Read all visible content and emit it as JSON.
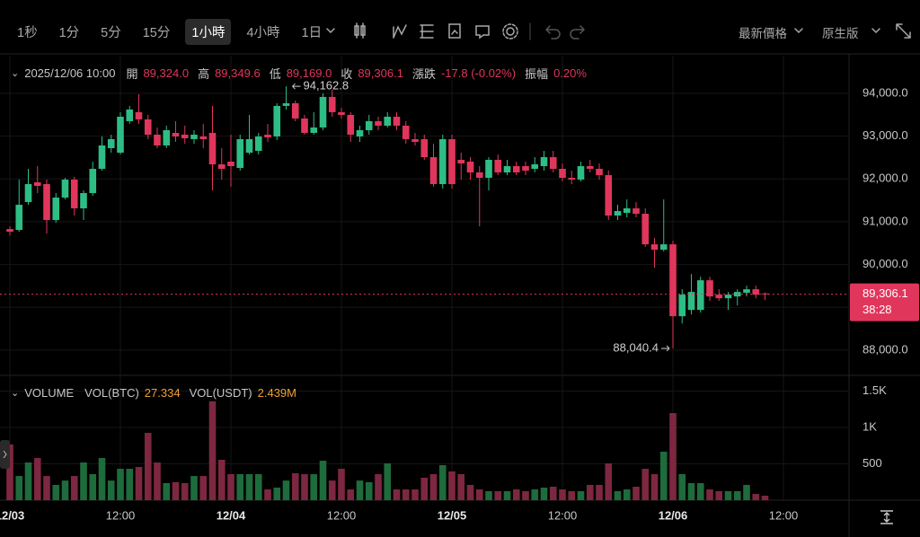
{
  "toolbar": {
    "intervals": [
      "1秒",
      "1分",
      "5分",
      "15分",
      "1小時",
      "4小時",
      "1日"
    ],
    "active_interval": "1小時",
    "price_type": "最新價格",
    "version": "原生版"
  },
  "chart_data": {
    "type": "candlestick",
    "info": {
      "time": "2025/12/06 10:00",
      "fields": [
        {
          "name": "開",
          "value": "89,324.0"
        },
        {
          "name": "高",
          "value": "89,349.6"
        },
        {
          "name": "低",
          "value": "89,169.0"
        },
        {
          "name": "收",
          "value": "89,306.1"
        },
        {
          "name": "漲跌",
          "value": "-17.8 (-0.02%)"
        },
        {
          "name": "振幅",
          "value": "0.20%"
        }
      ]
    },
    "up_color": "#2ebd85",
    "down_color": "#e0365c",
    "open": [
      90829,
      90808,
      91459,
      91921,
      91879,
      91039,
      91564,
      91984,
      91312,
      91669,
      92236,
      92719,
      92614,
      93349,
      93559,
      93391,
      93034,
      92782,
      93076,
      93034,
      92929,
      92992,
      93076,
      92341,
      92404,
      92257,
      92614,
      92656,
      93034,
      92992,
      93706,
      93769,
      93412,
      93076,
      93202,
      93916,
      93559,
      93496,
      92992,
      93139,
      93349,
      93244,
      93454,
      93244,
      92929,
      92929,
      92509,
      91879,
      92929,
      92446,
      92404,
      92152,
      92026,
      92446,
      92152,
      92299,
      92299,
      92236,
      92299,
      92509,
      92236,
      92026,
      91984,
      92299,
      92236,
      92089,
      91144,
      91207,
      91312,
      91186,
      90472,
      90346,
      90472,
      88792,
      88939,
      88939,
      89632,
      89296,
      89212,
      89254,
      89338,
      89422,
      89324.0
    ],
    "high": [
      90892,
      91984,
      92236,
      92299,
      91984,
      91669,
      92026,
      92047,
      91732,
      92404,
      92992,
      93034,
      93559,
      93706,
      93979,
      93496,
      93202,
      93244,
      93349,
      93244,
      93139,
      93286,
      93706,
      92719,
      93034,
      93034,
      93496,
      93076,
      93286,
      93769,
      94162.8,
      93832,
      93496,
      93559,
      94000,
      94084,
      93664,
      93559,
      93244,
      93496,
      93454,
      93559,
      93559,
      93349,
      93076,
      93034,
      92824,
      93034,
      93034,
      92614,
      92509,
      92299,
      92509,
      92572,
      92446,
      92404,
      92404,
      92509,
      92656,
      92656,
      92362,
      92194,
      92404,
      92446,
      92362,
      92194,
      91396,
      91522,
      91459,
      91312,
      90619,
      91522,
      90556,
      89422,
      89779,
      89716,
      89716,
      89422,
      89359,
      89422,
      89506,
      89506,
      89349.6
    ],
    "low": [
      90682,
      90766,
      91396,
      91669,
      90724,
      90976,
      91522,
      91144,
      91039,
      91606,
      92194,
      92614,
      92572,
      93286,
      93286,
      92929,
      92719,
      92719,
      92866,
      92824,
      92824,
      92719,
      91732,
      91984,
      91816,
      92194,
      92572,
      92572,
      92866,
      92908,
      93622,
      93349,
      93034,
      93034,
      93139,
      93454,
      93412,
      92866,
      92866,
      93034,
      93139,
      93202,
      93139,
      92824,
      92782,
      92446,
      91816,
      91774,
      91774,
      91984,
      91984,
      90892,
      91732,
      92089,
      92089,
      92089,
      92089,
      92152,
      92194,
      92152,
      91942,
      91879,
      91942,
      92152,
      91984,
      91039,
      91039,
      91102,
      91102,
      90409,
      89926,
      90304,
      88040.4,
      88624,
      88834,
      88876,
      89149,
      89149,
      88939,
      89044,
      89254,
      89212,
      89169.0
    ],
    "close": [
      90766,
      91396,
      91879,
      91837,
      91039,
      91564,
      91984,
      91312,
      91669,
      92236,
      92782,
      92929,
      93454,
      93622,
      93391,
      93034,
      92782,
      93139,
      92992,
      92950,
      93034,
      92929,
      92341,
      92236,
      92299,
      92929,
      92929,
      92992,
      92971,
      93706,
      93769,
      93412,
      93076,
      93202,
      93916,
      93559,
      93496,
      93034,
      93139,
      93349,
      93244,
      93454,
      93244,
      92929,
      92866,
      92509,
      91879,
      92929,
      91879,
      92362,
      92152,
      92026,
      92446,
      92152,
      92299,
      92152,
      92194,
      92341,
      92509,
      92236,
      92026,
      91984,
      92299,
      92236,
      92089,
      91144,
      91249,
      91312,
      91186,
      90472,
      90346,
      90472,
      88792,
      89296,
      89359,
      89632,
      89254,
      89212,
      89296,
      89359,
      89422,
      89296,
      89306.1
    ],
    "ylim": [
      87410,
      94880
    ],
    "yticks": [
      {
        "value": 88000,
        "label": "88,000.0"
      },
      {
        "value": 89000,
        "label": "89,000.0"
      },
      {
        "value": 90000,
        "label": "90,000.0"
      },
      {
        "value": 91000,
        "label": "91,000.0"
      },
      {
        "value": 92000,
        "label": "92,000.0"
      },
      {
        "value": 93000,
        "label": "93,000.0"
      },
      {
        "value": 94000,
        "label": "94,000.0"
      }
    ],
    "xticks": [
      {
        "value": 0,
        "label": "12/03"
      },
      {
        "value": 12,
        "label": "12:00"
      },
      {
        "value": 24,
        "label": "12/04"
      },
      {
        "value": 36,
        "label": "12:00"
      },
      {
        "value": 48,
        "label": "12/05"
      },
      {
        "value": 60,
        "label": "12:00"
      },
      {
        "value": 72,
        "label": "12/06"
      },
      {
        "value": 84,
        "label": "12:00"
      }
    ],
    "grid": true,
    "max_mark": {
      "value": 94162.8,
      "label": "94,162.8"
    },
    "min_mark": {
      "value": 88040.4,
      "label": "88,040.4"
    },
    "last_price": {
      "value": 89306.1,
      "label": "89,306.1",
      "countdown": "38:28"
    },
    "volume": {
      "title": "VOLUME",
      "fields": [
        {
          "name": "VOL(BTC)",
          "value": "27.334"
        },
        {
          "name": "VOL(USDT)",
          "value": "2.439M"
        }
      ],
      "up_color": "#1e6b3c",
      "down_color": "#7d2740",
      "values": [
        766,
        333,
        519,
        580,
        333,
        210,
        270,
        333,
        519,
        358,
        580,
        270,
        432,
        432,
        457,
        926,
        519,
        235,
        247,
        235,
        333,
        333,
        1359,
        556,
        358,
        358,
        358,
        358,
        148,
        173,
        270,
        370,
        358,
        358,
        543,
        270,
        432,
        148,
        270,
        247,
        358,
        506,
        148,
        148,
        148,
        309,
        358,
        482,
        395,
        358,
        210,
        148,
        124,
        124,
        124,
        148,
        124,
        148,
        173,
        185,
        148,
        124,
        124,
        210,
        210,
        506,
        124,
        148,
        185,
        432,
        358,
        667,
        1198,
        358,
        235,
        235,
        148,
        124,
        124,
        124,
        210,
        86,
        62
      ],
      "ylim": [
        0,
        1630
      ],
      "yticks": [
        500,
        {
          "value": 1000,
          "label": "1K"
        },
        {
          "value": 1500,
          "label": "1.5K"
        }
      ]
    }
  }
}
